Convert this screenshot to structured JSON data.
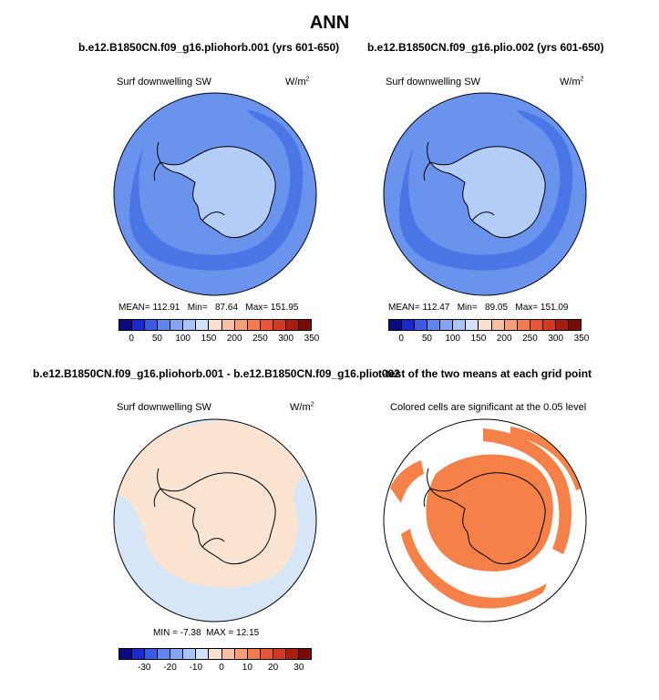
{
  "main_title": "ANN",
  "panels": {
    "tl": {
      "title": "b.e12.B1850CN.f09_g16.pliohorb.001 (yrs 601-650)",
      "variable": "Surf downwelling SW",
      "units": "W/m",
      "units_sup": "2",
      "mean_label": "MEAN=",
      "mean_value": "112.91",
      "min_label": "Min=",
      "min_value": "87.64",
      "max_label": "Max=",
      "max_value": "151.95"
    },
    "tr": {
      "title": "b.e12.B1850CN.f09_g16.plio.002 (yrs 601-650)",
      "variable": "Surf downwelling SW",
      "units": "W/m",
      "units_sup": "2",
      "mean_label": "MEAN=",
      "mean_value": "112.47",
      "min_label": "Min=",
      "min_value": "89.05",
      "max_label": "Max=",
      "max_value": "151.09"
    },
    "bl": {
      "title": "b.e12.B1850CN.f09_g16.pliohorb.001 - b.e12.B1850CN.f09_g16.plio.002",
      "variable": "Surf downwelling SW",
      "units": "W/m",
      "units_sup": "2",
      "min_label": "MIN =",
      "min_value": "-7.38",
      "max_label": "MAX =",
      "max_value": "12.15"
    },
    "br": {
      "title": "t-test of the two means at each grid point",
      "note": "Colored cells are significant at the 0.05 level"
    }
  },
  "chart_data": [
    {
      "type": "heatmap",
      "title": "b.e12.B1850CN.f09_g16.pliohorb.001 (yrs 601-650)",
      "variable": "Surf downwelling SW",
      "units": "W/m2",
      "projection": "south polar stereographic",
      "stats": {
        "mean": 112.91,
        "min": 87.64,
        "max": 151.95
      },
      "colorbar_levels": [
        0,
        50,
        100,
        150,
        200,
        250,
        300,
        350
      ]
    },
    {
      "type": "heatmap",
      "title": "b.e12.B1850CN.f09_g16.plio.002 (yrs 601-650)",
      "variable": "Surf downwelling SW",
      "units": "W/m2",
      "projection": "south polar stereographic",
      "stats": {
        "mean": 112.47,
        "min": 89.05,
        "max": 151.09
      },
      "colorbar_levels": [
        0,
        50,
        100,
        150,
        200,
        250,
        300,
        350
      ]
    },
    {
      "type": "heatmap",
      "title": "b.e12.B1850CN.f09_g16.pliohorb.001 - b.e12.B1850CN.f09_g16.plio.002",
      "variable": "Surf downwelling SW",
      "units": "W/m2",
      "projection": "south polar stereographic",
      "stats": {
        "min": -7.38,
        "max": 12.15
      },
      "colorbar_levels": [
        -30,
        -20,
        -10,
        0,
        10,
        20,
        30
      ]
    },
    {
      "type": "heatmap",
      "title": "t-test of the two means at each grid point",
      "note": "Colored cells are significant at the 0.05 level",
      "projection": "south polar stereographic"
    }
  ],
  "colorbars": {
    "abs": {
      "colors": [
        "#0a0a80",
        "#1a2ad0",
        "#3a5ae6",
        "#5e86ee",
        "#82a6f2",
        "#a8c4f6",
        "#d2e2fa",
        "#fbe0cf",
        "#f7c0a4",
        "#f79d78",
        "#f47a50",
        "#ea5633",
        "#d23a22",
        "#a81d10",
        "#7b0b05"
      ],
      "ticks": [
        "0",
        "50",
        "100",
        "150",
        "200",
        "250",
        "300",
        "350"
      ]
    },
    "diff": {
      "colors": [
        "#0a0a80",
        "#1a2ad0",
        "#3a5ae6",
        "#5e86ee",
        "#82a6f2",
        "#a8c4f6",
        "#d2e2fa",
        "#fbe0cf",
        "#f7c0a4",
        "#f79d78",
        "#f47a50",
        "#ea5633",
        "#d23a22",
        "#a81d10",
        "#7b0b05"
      ],
      "ticks": [
        "-30",
        "-20",
        "-10",
        "0",
        "10",
        "20",
        "30"
      ]
    }
  },
  "colors": {
    "ocean_abs": "#6a93ee",
    "band_abs": "#4a76e6",
    "continent_abs": "#b3cdf6",
    "diff_ocean": "#d7e6f7",
    "diff_pos": "#fbe3d2",
    "sig": "#f58048"
  }
}
